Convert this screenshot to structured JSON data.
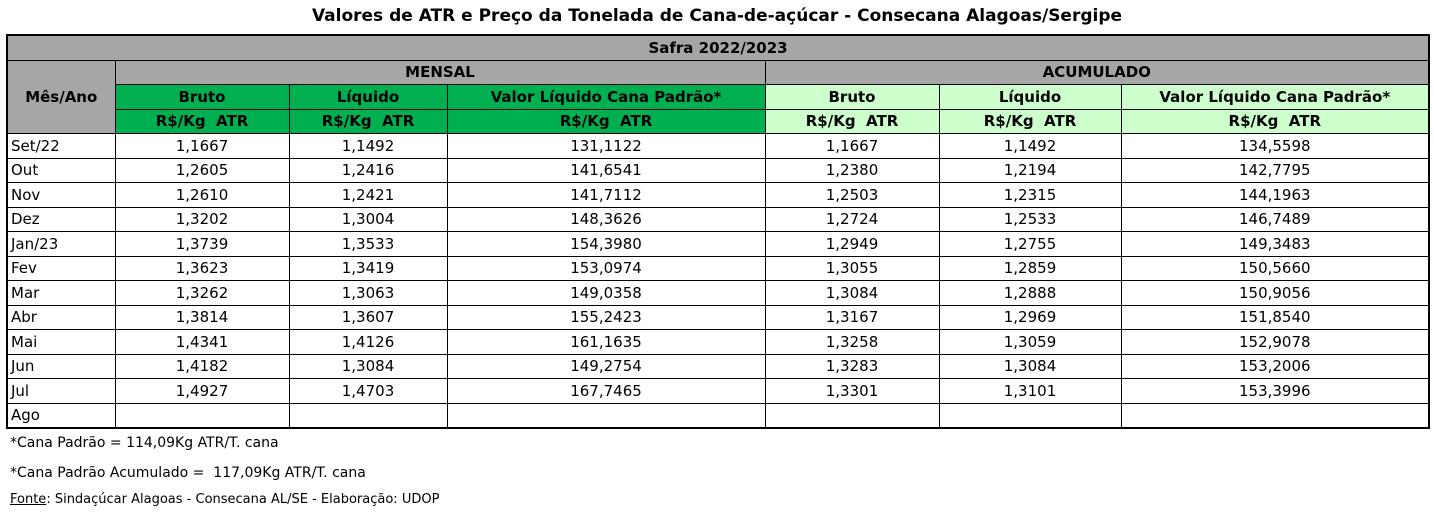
{
  "title": "Valores de ATR e Preço da Tonelada de Cana-de-açúcar - Consecana Alagoas/Sergipe",
  "table": {
    "safra": "Safra 2022/2023",
    "month_header": "Mês/Ano",
    "groups": [
      "MENSAL",
      "ACUMULADO"
    ],
    "columns": [
      "Bruto",
      "Líquido",
      "Valor Líquido Cana Padrão*",
      "Bruto",
      "Líquido",
      "Valor Líquido Cana Padrão*"
    ],
    "units": [
      "R$/Kg  ATR",
      "R$/Kg  ATR",
      "R$/Kg  ATR",
      "R$/Kg  ATR",
      "R$/Kg  ATR",
      "R$/Kg  ATR"
    ],
    "rows": [
      [
        "Set/22",
        "1,1667",
        "1,1492",
        "131,1122",
        "1,1667",
        "1,1492",
        "134,5598"
      ],
      [
        "Out",
        "1,2605",
        "1,2416",
        "141,6541",
        "1,2380",
        "1,2194",
        "142,7795"
      ],
      [
        "Nov",
        "1,2610",
        "1,2421",
        "141,7112",
        "1,2503",
        "1,2315",
        "144,1963"
      ],
      [
        "Dez",
        "1,3202",
        "1,3004",
        "148,3626",
        "1,2724",
        "1,2533",
        "146,7489"
      ],
      [
        "Jan/23",
        "1,3739",
        "1,3533",
        "154,3980",
        "1,2949",
        "1,2755",
        "149,3483"
      ],
      [
        "Fev",
        "1,3623",
        "1,3419",
        "153,0974",
        "1,3055",
        "1,2859",
        "150,5660"
      ],
      [
        "Mar",
        "1,3262",
        "1,3063",
        "149,0358",
        "1,3084",
        "1,2888",
        "150,9056"
      ],
      [
        "Abr",
        "1,3814",
        "1,3607",
        "155,2423",
        "1,3167",
        "1,2969",
        "151,8540"
      ],
      [
        "Mai",
        "1,4341",
        "1,4126",
        "161,1635",
        "1,3258",
        "1,3059",
        "152,9078"
      ],
      [
        "Jun",
        "1,4182",
        "1,3084",
        "149,2754",
        "1,3283",
        "1,3084",
        "153,2006"
      ],
      [
        "Jul",
        "1,4927",
        "1,4703",
        "167,7465",
        "1,3301",
        "1,3101",
        "153,3996"
      ],
      [
        "Ago",
        null,
        null,
        null,
        null,
        null,
        null
      ]
    ]
  },
  "notes": [
    "*Cana Padrão = 114,09Kg ATR/T. cana",
    "*Cana Padrão Acumulado =  117,09Kg ATR/T. cana"
  ],
  "source": {
    "label": "Fonte",
    "text": ": Sindaçúcar Alagoas - Consecana AL/SE - Elaboração: UDOP"
  }
}
